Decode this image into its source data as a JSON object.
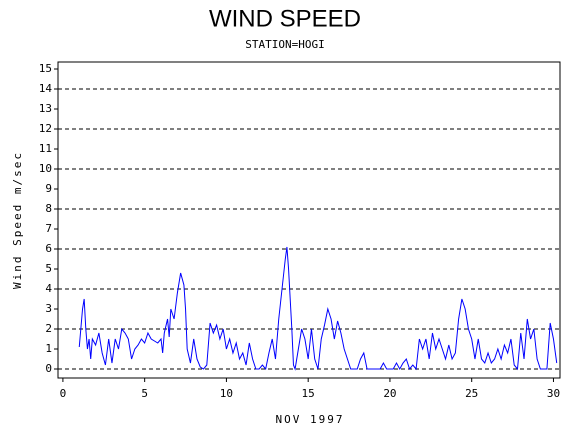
{
  "chart_data": {
    "type": "line",
    "title": "WIND SPEED",
    "subtitle": "STATION=HOGI",
    "x_label": "NOV 1997",
    "y_label": "Wind Speed m/sec",
    "color": "#0000ff",
    "xlim": [
      -0.3,
      30.4
    ],
    "ylim": [
      -0.45,
      15.35
    ],
    "xticks": [
      0,
      5,
      10,
      15,
      20,
      25,
      30
    ],
    "yticks": [
      0,
      1,
      2,
      3,
      4,
      5,
      6,
      7,
      8,
      9,
      10,
      11,
      12,
      13,
      14,
      15
    ],
    "grid_yticks": [
      0,
      2,
      4,
      6,
      8,
      10,
      12,
      14
    ],
    "x": [
      1.0,
      1.2,
      1.3,
      1.4,
      1.5,
      1.6,
      1.7,
      1.8,
      2.0,
      2.2,
      2.4,
      2.6,
      2.8,
      3.0,
      3.2,
      3.4,
      3.6,
      3.8,
      4.0,
      4.2,
      4.4,
      4.6,
      4.8,
      5.0,
      5.2,
      5.4,
      5.6,
      5.8,
      6.0,
      6.1,
      6.2,
      6.4,
      6.5,
      6.6,
      6.8,
      7.0,
      7.2,
      7.4,
      7.5,
      7.6,
      7.8,
      8.0,
      8.2,
      8.4,
      8.6,
      8.8,
      9.0,
      9.2,
      9.4,
      9.6,
      9.8,
      10.0,
      10.2,
      10.4,
      10.6,
      10.8,
      11.0,
      11.2,
      11.4,
      11.6,
      11.8,
      12.0,
      12.2,
      12.4,
      12.6,
      12.8,
      13.0,
      13.2,
      13.4,
      13.6,
      13.7,
      13.8,
      14.0,
      14.1,
      14.2,
      14.4,
      14.6,
      14.8,
      15.0,
      15.2,
      15.4,
      15.6,
      15.8,
      16.0,
      16.2,
      16.4,
      16.6,
      16.8,
      17.0,
      17.2,
      17.4,
      17.6,
      17.8,
      18.0,
      18.2,
      18.4,
      18.6,
      18.8,
      19.0,
      19.4,
      19.6,
      19.8,
      20.2,
      20.4,
      20.6,
      20.8,
      21.0,
      21.2,
      21.4,
      21.6,
      21.8,
      22.0,
      22.2,
      22.4,
      22.6,
      22.8,
      23.0,
      23.2,
      23.4,
      23.6,
      23.8,
      24.0,
      24.2,
      24.4,
      24.6,
      24.8,
      25.0,
      25.2,
      25.4,
      25.6,
      25.8,
      26.0,
      26.2,
      26.4,
      26.6,
      26.8,
      27.0,
      27.2,
      27.4,
      27.6,
      27.8,
      28.0,
      28.2,
      28.4,
      28.6,
      28.8,
      29.0,
      29.2,
      29.4,
      29.6,
      29.8,
      30.0,
      30.2
    ],
    "values": [
      1.1,
      3.0,
      3.5,
      2.0,
      1.0,
      1.5,
      0.5,
      1.5,
      1.2,
      1.8,
      0.8,
      0.2,
      1.5,
      0.3,
      1.5,
      1.0,
      2.0,
      1.8,
      1.5,
      0.5,
      1.0,
      1.2,
      1.5,
      1.3,
      1.8,
      1.5,
      1.4,
      1.3,
      1.5,
      0.8,
      1.8,
      2.5,
      1.6,
      3.0,
      2.5,
      3.8,
      4.8,
      4.2,
      3.0,
      1.0,
      0.3,
      1.5,
      0.5,
      0.1,
      0.0,
      0.2,
      2.3,
      1.8,
      2.2,
      1.5,
      2.0,
      1.0,
      1.5,
      0.8,
      1.3,
      0.5,
      0.8,
      0.2,
      1.3,
      0.5,
      0.0,
      0.0,
      0.2,
      0.0,
      0.8,
      1.5,
      0.5,
      2.5,
      4.0,
      5.5,
      6.1,
      5.0,
      2.0,
      0.2,
      0.0,
      1.0,
      2.0,
      1.5,
      0.5,
      2.0,
      0.5,
      0.0,
      1.5,
      2.2,
      3.0,
      2.5,
      1.5,
      2.4,
      1.8,
      1.0,
      0.5,
      0.0,
      0.0,
      0.0,
      0.5,
      0.8,
      0.0,
      0.0,
      0.0,
      0.0,
      0.3,
      0.0,
      0.0,
      0.3,
      0.0,
      0.3,
      0.5,
      0.0,
      0.2,
      0.0,
      1.5,
      1.0,
      1.5,
      0.5,
      1.8,
      1.0,
      1.5,
      1.0,
      0.5,
      1.2,
      0.5,
      0.8,
      2.5,
      3.5,
      3.0,
      2.0,
      1.5,
      0.5,
      1.5,
      0.5,
      0.3,
      0.8,
      0.3,
      0.5,
      1.0,
      0.5,
      1.2,
      0.8,
      1.5,
      0.2,
      0.0,
      1.8,
      0.5,
      2.5,
      1.5,
      2.0,
      0.5,
      0.0,
      0.0,
      0.0,
      2.3,
      1.5,
      0.3
    ]
  }
}
